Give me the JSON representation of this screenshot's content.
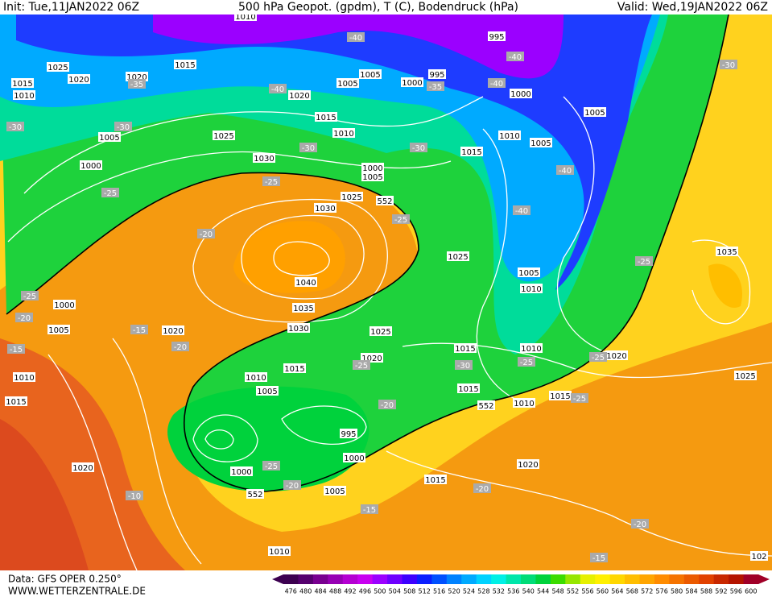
{
  "header": {
    "init": "Init: Tue,11JAN2022 06Z",
    "title": "500 hPa Geopot. (gpdm), T (C), Bodendruck (hPa)",
    "valid": "Valid: Wed,19JAN2022 06Z"
  },
  "footer": {
    "data": "Data: GFS OPER 0.250°",
    "site": "WWW.WETTERZENTRALE.DE"
  },
  "colorbar": {
    "levels": [
      476,
      480,
      484,
      488,
      492,
      496,
      500,
      504,
      508,
      512,
      516,
      520,
      524,
      528,
      532,
      536,
      540,
      544,
      548,
      552,
      556,
      560,
      564,
      568,
      572,
      576,
      580,
      584,
      588,
      592,
      596,
      600
    ],
    "colors": [
      "#3c0050",
      "#55006e",
      "#780090",
      "#9600b4",
      "#b400d2",
      "#c800f0",
      "#9b00ff",
      "#6e00ff",
      "#3c00ff",
      "#0a1eff",
      "#0050ff",
      "#0082ff",
      "#00aaff",
      "#00d2ff",
      "#00f0e6",
      "#00e6aa",
      "#00dc78",
      "#00d23c",
      "#3cdc00",
      "#96e600",
      "#e6f000",
      "#fff000",
      "#ffd700",
      "#ffbe00",
      "#ffa500",
      "#ff8c00",
      "#f57300",
      "#eb5a00",
      "#e14100",
      "#c82800",
      "#b41400",
      "#a00028"
    ]
  },
  "isobar_labels": [
    "1010",
    "1025",
    "1020",
    "1015",
    "1010",
    "1020",
    "1015",
    "1020",
    "1005",
    "1005",
    "1000",
    "995",
    "995",
    "1000",
    "1015",
    "1010",
    "1025",
    "1005",
    "1030",
    "1000",
    "1005",
    "1015",
    "1010",
    "1005",
    "1005",
    "1000",
    "1025",
    "1030",
    "1025",
    "1005",
    "1010",
    "1040",
    "1035",
    "1030",
    "1025",
    "1020",
    "1015",
    "1000",
    "1005",
    "1020",
    "1010",
    "1015",
    "1010",
    "1005",
    "1015",
    "1010",
    "1020",
    "1035",
    "1025",
    "1015",
    "1010",
    "1015",
    "995",
    "1000",
    "1000",
    "1005",
    "1020",
    "1015",
    "1020",
    "1010",
    "102"
  ],
  "height_labels": [
    "552",
    "552",
    "552"
  ],
  "temperature_labels": [
    "-40",
    "-40",
    "-40",
    "-40",
    "-35",
    "-35",
    "-30",
    "-30",
    "-30",
    "-30",
    "-25",
    "-25",
    "-25",
    "-40",
    "-40",
    "-30",
    "-20",
    "-25",
    "-25",
    "-20",
    "-15",
    "-20",
    "-15",
    "-25",
    "-30",
    "-25",
    "-25",
    "-20",
    "-25",
    "-25",
    "-20",
    "-10",
    "-15",
    "-20",
    "-20",
    "-15"
  ]
}
